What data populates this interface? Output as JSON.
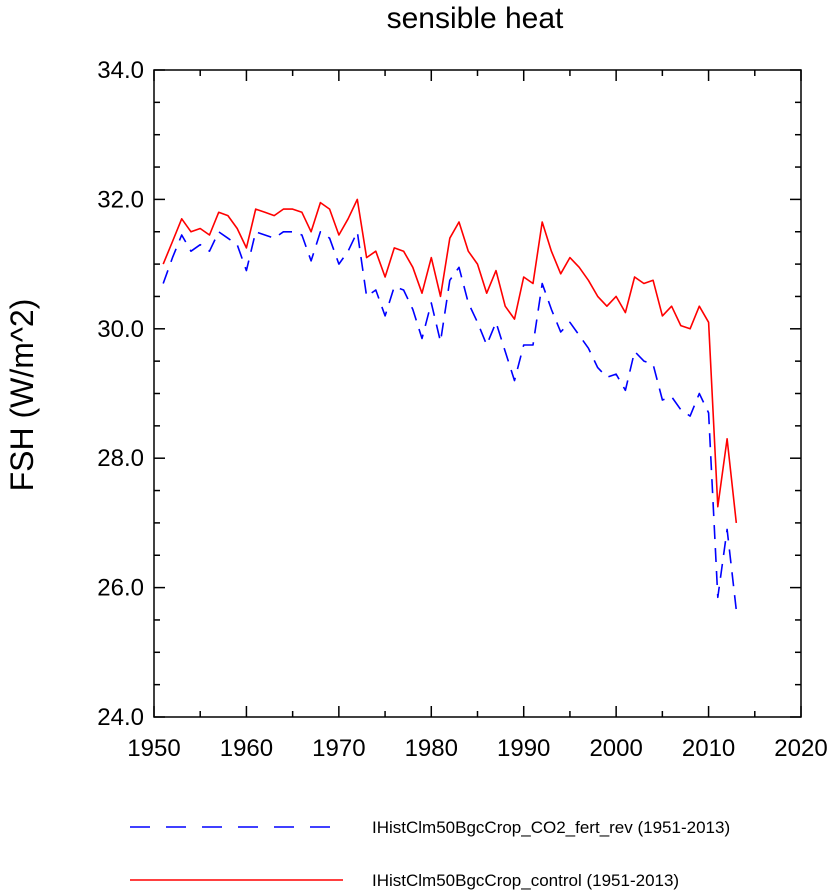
{
  "chart_data": {
    "type": "line",
    "title": "sensible heat",
    "xlabel": "",
    "ylabel": "FSH  (W/m^2)",
    "xlim": [
      1950,
      2020
    ],
    "ylim": [
      24.0,
      34.0
    ],
    "x_ticks": [
      1950,
      1960,
      1970,
      1980,
      1990,
      2000,
      2010,
      2020
    ],
    "x_tick_labels": [
      "1950",
      "1960",
      "1970",
      "1980",
      "1990",
      "2000",
      "2010",
      "2020"
    ],
    "y_ticks": [
      24.0,
      26.0,
      28.0,
      30.0,
      32.0,
      34.0
    ],
    "y_tick_labels": [
      "24.0",
      "26.0",
      "28.0",
      "30.0",
      "32.0",
      "34.0"
    ],
    "grid": false,
    "legend_position": "bottom",
    "x": [
      1951,
      1952,
      1953,
      1954,
      1955,
      1956,
      1957,
      1958,
      1959,
      1960,
      1961,
      1962,
      1963,
      1964,
      1965,
      1966,
      1967,
      1968,
      1969,
      1970,
      1971,
      1972,
      1973,
      1974,
      1975,
      1976,
      1977,
      1978,
      1979,
      1980,
      1981,
      1982,
      1983,
      1984,
      1985,
      1986,
      1987,
      1988,
      1989,
      1990,
      1991,
      1992,
      1993,
      1994,
      1995,
      1996,
      1997,
      1998,
      1999,
      2000,
      2001,
      2002,
      2003,
      2004,
      2005,
      2006,
      2007,
      2008,
      2009,
      2010,
      2011,
      2012,
      2013
    ],
    "series": [
      {
        "name": "IHistClm50BgcCrop_CO2_fert_rev (1951-2013)",
        "color": "#0000ff",
        "dash": "dashed",
        "values": [
          30.7,
          31.1,
          31.45,
          31.2,
          31.3,
          31.2,
          31.5,
          31.4,
          31.3,
          30.9,
          31.5,
          31.45,
          31.4,
          31.5,
          31.5,
          31.45,
          31.05,
          31.5,
          31.4,
          31.0,
          31.2,
          31.5,
          30.5,
          30.6,
          30.2,
          30.65,
          30.6,
          30.3,
          29.85,
          30.4,
          29.8,
          30.75,
          30.95,
          30.4,
          30.1,
          29.75,
          30.1,
          29.65,
          29.2,
          29.75,
          29.75,
          30.7,
          30.3,
          29.95,
          30.1,
          29.9,
          29.7,
          29.4,
          29.25,
          29.3,
          29.05,
          29.65,
          29.5,
          29.45,
          28.9,
          28.95,
          28.75,
          28.65,
          29.0,
          28.7,
          25.85,
          26.9,
          25.65
        ]
      },
      {
        "name": "IHistClm50BgcCrop_control (1951-2013)",
        "color": "#ff0000",
        "dash": "solid",
        "values": [
          31.0,
          31.35,
          31.7,
          31.5,
          31.55,
          31.45,
          31.8,
          31.75,
          31.55,
          31.25,
          31.85,
          31.8,
          31.75,
          31.85,
          31.85,
          31.8,
          31.5,
          31.95,
          31.85,
          31.45,
          31.7,
          32.0,
          31.1,
          31.2,
          30.8,
          31.25,
          31.2,
          30.95,
          30.55,
          31.1,
          30.5,
          31.4,
          31.65,
          31.2,
          31.0,
          30.55,
          30.9,
          30.35,
          30.15,
          30.8,
          30.7,
          31.65,
          31.2,
          30.85,
          31.1,
          30.95,
          30.75,
          30.5,
          30.35,
          30.5,
          30.25,
          30.8,
          30.7,
          30.75,
          30.2,
          30.35,
          30.05,
          30.0,
          30.35,
          30.1,
          27.25,
          28.3,
          27.0
        ]
      }
    ]
  }
}
